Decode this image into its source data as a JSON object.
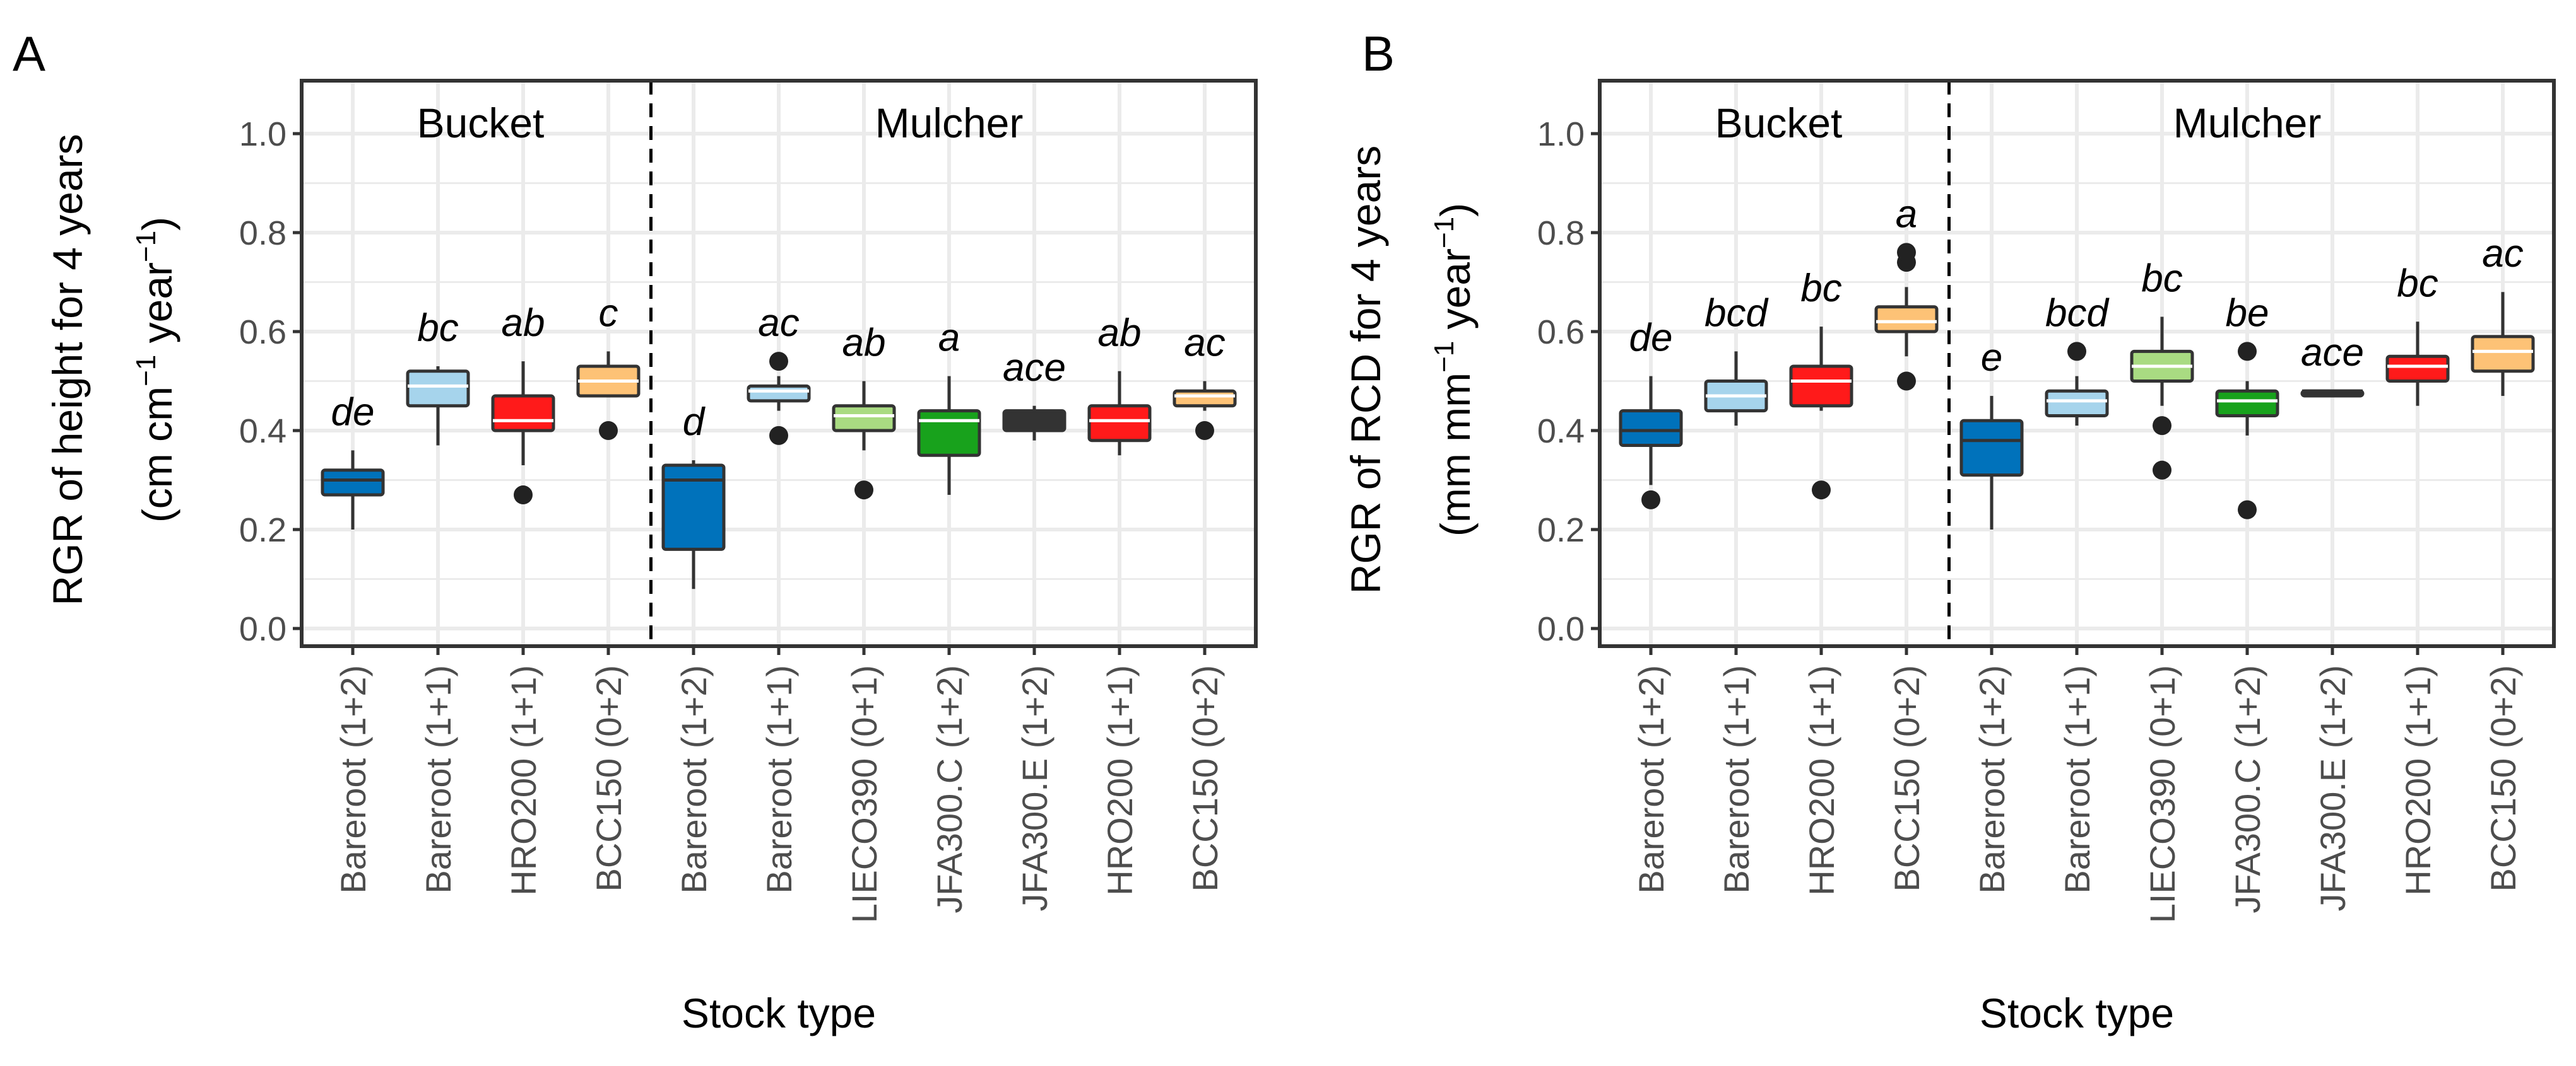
{
  "figure": {
    "panels": [
      "A",
      "B"
    ]
  },
  "colors": {
    "Bareroot (1+2)": "#0072bb",
    "Bareroot (1+1)": "#a6d4ec",
    "HRO200 (1+1)": "#ff1a1a",
    "BCC150 (0+2)": "#fdc276",
    "LIECO390 (0+1)": "#a9db82",
    "JFA300.C (1+2)": "#18a21c",
    "JFA300.E (1+2)": "#333333",
    "panel_border": "#333333",
    "grid": "#ebebeb",
    "outlier": "#222222"
  },
  "chart_data": [
    {
      "type": "boxplot",
      "panel_label": "A",
      "ylabel": "RGR of height for 4 years",
      "ylabel_units": [
        "(cm cm",
        "−1",
        " year",
        "−1",
        ")"
      ],
      "xlabel": "Stock type",
      "ylim": [
        0,
        1.0
      ],
      "yticks": [
        "0.0",
        "0.2",
        "0.4",
        "0.6",
        "0.8",
        "1.0"
      ],
      "grid": true,
      "groups": [
        {
          "name": "Bucket",
          "start": 0,
          "end": 3
        },
        {
          "name": "Mulcher",
          "start": 4,
          "end": 10
        }
      ],
      "categories": [
        "Bareroot (1+2)",
        "Bareroot (1+1)",
        "HRO200 (1+1)",
        "BCC150 (0+2)",
        "Bareroot (1+2)",
        "Bareroot (1+1)",
        "LIECO390 (0+1)",
        "JFA300.C (1+2)",
        "JFA300.E (1+2)",
        "HRO200 (1+1)",
        "BCC150 (0+2)"
      ],
      "boxes": [
        {
          "category": "Bareroot (1+2)",
          "group": "Bucket",
          "min": 0.2,
          "q1": 0.27,
          "median": 0.3,
          "q3": 0.32,
          "max": 0.36,
          "outliers": [],
          "letter": "de"
        },
        {
          "category": "Bareroot (1+1)",
          "group": "Bucket",
          "min": 0.37,
          "q1": 0.45,
          "median": 0.49,
          "q3": 0.52,
          "max": 0.53,
          "outliers": [],
          "letter": "bc"
        },
        {
          "category": "HRO200 (1+1)",
          "group": "Bucket",
          "min": 0.33,
          "q1": 0.4,
          "median": 0.42,
          "q3": 0.47,
          "max": 0.54,
          "outliers": [
            0.27
          ],
          "letter": "ab"
        },
        {
          "category": "BCC150 (0+2)",
          "group": "Bucket",
          "min": 0.47,
          "q1": 0.47,
          "median": 0.5,
          "q3": 0.53,
          "max": 0.56,
          "outliers": [
            0.4
          ],
          "letter": "c"
        },
        {
          "category": "Bareroot (1+2)",
          "group": "Mulcher",
          "min": 0.08,
          "q1": 0.16,
          "median": 0.3,
          "q3": 0.33,
          "max": 0.34,
          "outliers": [],
          "letter": "d"
        },
        {
          "category": "Bareroot (1+1)",
          "group": "Mulcher",
          "min": 0.44,
          "q1": 0.46,
          "median": 0.48,
          "q3": 0.49,
          "max": 0.51,
          "outliers": [
            0.39,
            0.54
          ],
          "letter": "ac"
        },
        {
          "category": "LIECO390 (0+1)",
          "group": "Mulcher",
          "min": 0.36,
          "q1": 0.4,
          "median": 0.43,
          "q3": 0.45,
          "max": 0.5,
          "outliers": [
            0.28
          ],
          "letter": "ab"
        },
        {
          "category": "JFA300.C (1+2)",
          "group": "Mulcher",
          "min": 0.27,
          "q1": 0.35,
          "median": 0.42,
          "q3": 0.44,
          "max": 0.51,
          "outliers": [],
          "letter": "a"
        },
        {
          "category": "JFA300.E (1+2)",
          "group": "Mulcher",
          "min": 0.38,
          "q1": 0.4,
          "median": 0.42,
          "q3": 0.44,
          "max": 0.45,
          "outliers": [],
          "letter": "ace"
        },
        {
          "category": "HRO200 (1+1)",
          "group": "Mulcher",
          "min": 0.35,
          "q1": 0.38,
          "median": 0.42,
          "q3": 0.45,
          "max": 0.52,
          "outliers": [],
          "letter": "ab"
        },
        {
          "category": "BCC150 (0+2)",
          "group": "Mulcher",
          "min": 0.44,
          "q1": 0.45,
          "median": 0.47,
          "q3": 0.48,
          "max": 0.5,
          "outliers": [
            0.4
          ],
          "letter": "ac"
        }
      ]
    },
    {
      "type": "boxplot",
      "panel_label": "B",
      "ylabel": "RGR of RCD for 4 years",
      "ylabel_units": [
        "(mm mm",
        "−1",
        " year",
        "−1",
        ")"
      ],
      "xlabel": "Stock type",
      "ylim": [
        0,
        1.0
      ],
      "yticks": [
        "0.0",
        "0.2",
        "0.4",
        "0.6",
        "0.8",
        "1.0"
      ],
      "grid": true,
      "groups": [
        {
          "name": "Bucket",
          "start": 0,
          "end": 3
        },
        {
          "name": "Mulcher",
          "start": 4,
          "end": 10
        }
      ],
      "categories": [
        "Bareroot (1+2)",
        "Bareroot (1+1)",
        "HRO200 (1+1)",
        "BCC150 (0+2)",
        "Bareroot (1+2)",
        "Bareroot (1+1)",
        "LIECO390 (0+1)",
        "JFA300.C (1+2)",
        "JFA300.E (1+2)",
        "HRO200 (1+1)",
        "BCC150 (0+2)"
      ],
      "boxes": [
        {
          "category": "Bareroot (1+2)",
          "group": "Bucket",
          "min": 0.29,
          "q1": 0.37,
          "median": 0.4,
          "q3": 0.44,
          "max": 0.51,
          "outliers": [
            0.26
          ],
          "letter": "de"
        },
        {
          "category": "Bareroot (1+1)",
          "group": "Bucket",
          "min": 0.41,
          "q1": 0.44,
          "median": 0.47,
          "q3": 0.5,
          "max": 0.56,
          "outliers": [],
          "letter": "bcd"
        },
        {
          "category": "HRO200 (1+1)",
          "group": "Bucket",
          "min": 0.44,
          "q1": 0.45,
          "median": 0.5,
          "q3": 0.53,
          "max": 0.61,
          "outliers": [
            0.28
          ],
          "letter": "bc"
        },
        {
          "category": "BCC150 (0+2)",
          "group": "Bucket",
          "min": 0.55,
          "q1": 0.6,
          "median": 0.62,
          "q3": 0.65,
          "max": 0.69,
          "outliers": [
            0.5,
            0.74,
            0.76
          ],
          "letter": "a"
        },
        {
          "category": "Bareroot (1+2)",
          "group": "Mulcher",
          "min": 0.2,
          "q1": 0.31,
          "median": 0.38,
          "q3": 0.42,
          "max": 0.47,
          "outliers": [],
          "letter": "e"
        },
        {
          "category": "Bareroot (1+1)",
          "group": "Mulcher",
          "min": 0.41,
          "q1": 0.43,
          "median": 0.46,
          "q3": 0.48,
          "max": 0.51,
          "outliers": [
            0.56
          ],
          "letter": "bcd"
        },
        {
          "category": "LIECO390 (0+1)",
          "group": "Mulcher",
          "min": 0.45,
          "q1": 0.5,
          "median": 0.53,
          "q3": 0.56,
          "max": 0.63,
          "outliers": [
            0.41,
            0.32
          ],
          "letter": "bc"
        },
        {
          "category": "JFA300.C (1+2)",
          "group": "Mulcher",
          "min": 0.39,
          "q1": 0.43,
          "median": 0.46,
          "q3": 0.48,
          "max": 0.5,
          "outliers": [
            0.56,
            0.24
          ],
          "letter": "be"
        },
        {
          "category": "JFA300.E (1+2)",
          "group": "Mulcher",
          "min": 0.47,
          "q1": 0.47,
          "median": 0.48,
          "q3": 0.48,
          "max": 0.48,
          "outliers": [],
          "letter": "ace"
        },
        {
          "category": "HRO200 (1+1)",
          "group": "Mulcher",
          "min": 0.45,
          "q1": 0.5,
          "median": 0.53,
          "q3": 0.55,
          "max": 0.62,
          "outliers": [],
          "letter": "bc"
        },
        {
          "category": "BCC150 (0+2)",
          "group": "Mulcher",
          "min": 0.47,
          "q1": 0.52,
          "median": 0.56,
          "q3": 0.59,
          "max": 0.68,
          "outliers": [],
          "letter": "ac"
        }
      ]
    }
  ]
}
